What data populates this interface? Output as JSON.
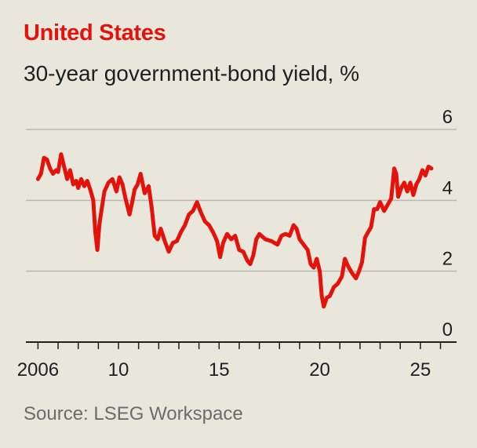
{
  "title": "United States",
  "subtitle": "30-year government-bond yield, %",
  "source": "Source: LSEG Workspace",
  "colors": {
    "line": "#e3120b",
    "title": "#e3120b",
    "grid": "#b9b8b0",
    "axis": "#1f1f1f",
    "background": "#e9e6dc"
  },
  "chart_data": {
    "type": "line",
    "title": "United States",
    "subtitle": "30-year government-bond yield, %",
    "xlabel": "",
    "ylabel": "",
    "xlim": [
      2005.4,
      2026.8
    ],
    "ylim": [
      0,
      6
    ],
    "yticks": [
      0,
      2,
      4,
      6
    ],
    "xtick_labels": [
      {
        "value": 2006,
        "label": "2006"
      },
      {
        "value": 2010,
        "label": "10"
      },
      {
        "value": 2015,
        "label": "15"
      },
      {
        "value": 2020,
        "label": "20"
      },
      {
        "value": 2025,
        "label": "25"
      }
    ],
    "xtick_years": [
      2006,
      2007,
      2008,
      2009,
      2010,
      2011,
      2012,
      2013,
      2014,
      2015,
      2016,
      2017,
      2018,
      2019,
      2020,
      2021,
      2022,
      2023,
      2024,
      2025,
      2026
    ],
    "grid": true,
    "y_axis_side": "right",
    "series": [
      {
        "x": [
          2006.0,
          2006.15,
          2006.3,
          2006.45,
          2006.6,
          2006.75,
          2006.9,
          2007.0,
          2007.15,
          2007.3,
          2007.45,
          2007.6,
          2007.75,
          2007.9,
          2008.0,
          2008.15,
          2008.3,
          2008.45,
          2008.6,
          2008.75,
          2008.85,
          2008.95,
          2009.05,
          2009.15,
          2009.3,
          2009.5,
          2009.7,
          2009.9,
          2010.05,
          2010.2,
          2010.35,
          2010.55,
          2010.7,
          2010.8,
          2010.95,
          2011.1,
          2011.3,
          2011.5,
          2011.65,
          2011.8,
          2011.95,
          2012.1,
          2012.3,
          2012.5,
          2012.7,
          2012.9,
          2013.1,
          2013.3,
          2013.5,
          2013.7,
          2013.9,
          2014.1,
          2014.3,
          2014.5,
          2014.7,
          2014.9,
          2015.05,
          2015.2,
          2015.4,
          2015.6,
          2015.8,
          2016.0,
          2016.2,
          2016.4,
          2016.55,
          2016.7,
          2016.85,
          2017.0,
          2017.3,
          2017.6,
          2017.9,
          2018.1,
          2018.3,
          2018.5,
          2018.7,
          2018.85,
          2019.0,
          2019.2,
          2019.4,
          2019.55,
          2019.7,
          2019.85,
          2020.0,
          2020.1,
          2020.2,
          2020.35,
          2020.5,
          2020.7,
          2020.9,
          2021.1,
          2021.25,
          2021.4,
          2021.6,
          2021.8,
          2021.95,
          2022.1,
          2022.25,
          2022.4,
          2022.55,
          2022.7,
          2022.85,
          2023.0,
          2023.2,
          2023.4,
          2023.55,
          2023.7,
          2023.8,
          2023.9,
          2024.05,
          2024.2,
          2024.35,
          2024.5,
          2024.65,
          2024.8,
          2024.95,
          2025.1,
          2025.25,
          2025.4,
          2025.55
        ],
        "values": [
          4.6,
          4.75,
          5.2,
          5.15,
          4.9,
          4.75,
          4.85,
          4.8,
          5.3,
          4.95,
          4.6,
          4.85,
          4.45,
          4.55,
          4.35,
          4.6,
          4.4,
          4.55,
          4.3,
          4.0,
          3.1,
          2.6,
          3.3,
          3.7,
          4.25,
          4.5,
          4.6,
          4.25,
          4.65,
          4.45,
          4.05,
          3.6,
          4.0,
          4.3,
          4.45,
          4.75,
          4.2,
          4.4,
          3.8,
          3.0,
          2.9,
          3.2,
          2.85,
          2.55,
          2.8,
          2.85,
          3.1,
          3.3,
          3.6,
          3.7,
          3.95,
          3.65,
          3.4,
          3.3,
          3.1,
          2.85,
          2.4,
          2.8,
          3.05,
          2.9,
          3.0,
          2.6,
          2.55,
          2.3,
          2.2,
          2.45,
          2.9,
          3.05,
          2.9,
          2.85,
          2.75,
          3.0,
          3.05,
          3.0,
          3.3,
          3.2,
          2.9,
          2.75,
          2.6,
          2.2,
          2.1,
          2.35,
          2.0,
          1.3,
          1.0,
          1.25,
          1.3,
          1.55,
          1.65,
          1.85,
          2.35,
          2.15,
          1.95,
          1.8,
          2.0,
          2.25,
          2.95,
          3.1,
          3.25,
          3.75,
          3.75,
          3.95,
          3.7,
          3.9,
          4.05,
          4.9,
          4.75,
          4.1,
          4.35,
          4.5,
          4.25,
          4.5,
          4.15,
          4.45,
          4.6,
          4.85,
          4.7,
          4.95,
          4.9
        ]
      }
    ]
  }
}
